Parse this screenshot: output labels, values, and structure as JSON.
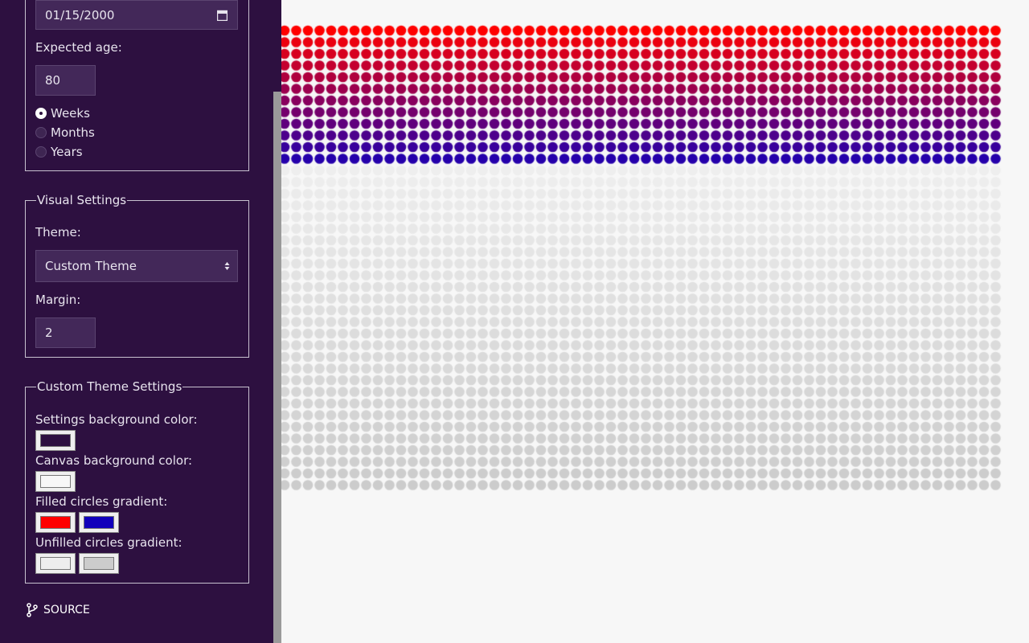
{
  "life": {
    "birth_date": "01/15/2000",
    "expected_age_label": "Expected age:",
    "expected_age": "80",
    "units": [
      "Weeks",
      "Months",
      "Years"
    ],
    "selected_unit": "Weeks"
  },
  "visual": {
    "legend": "Visual Settings",
    "theme_label": "Theme:",
    "theme_value": "Custom Theme",
    "margin_label": "Margin:",
    "margin_value": "2"
  },
  "custom_theme": {
    "legend": "Custom Theme Settings",
    "settings_bg_label": "Settings background color:",
    "settings_bg_color": "#2d1040",
    "canvas_bg_label": "Canvas background color:",
    "canvas_bg_color": "#f7f7f7",
    "filled_label": "Filled circles gradient:",
    "filled_start": "#ff0000",
    "filled_end": "#1100bb",
    "unfilled_label": "Unfilled circles gradient:",
    "unfilled_start": "#eeeeee",
    "unfilled_end": "#cccccc"
  },
  "source_link": "SOURCE",
  "grid": {
    "total_weeks": 4160,
    "filled_weeks": 1255
  }
}
